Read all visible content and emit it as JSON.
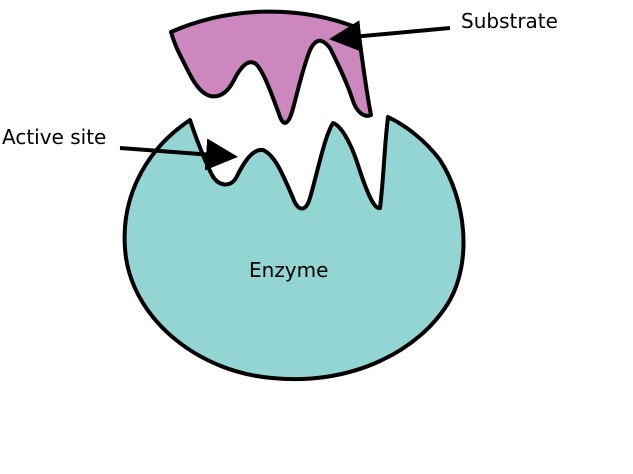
{
  "diagram": {
    "labels": {
      "substrate": "Substrate",
      "active_site": "Active site",
      "enzyme": "Enzyme"
    },
    "colors": {
      "enzyme_fill": "#93d5d2",
      "substrate_fill": "#cc88be",
      "outline": "#000000",
      "background": "#ffffff"
    }
  }
}
